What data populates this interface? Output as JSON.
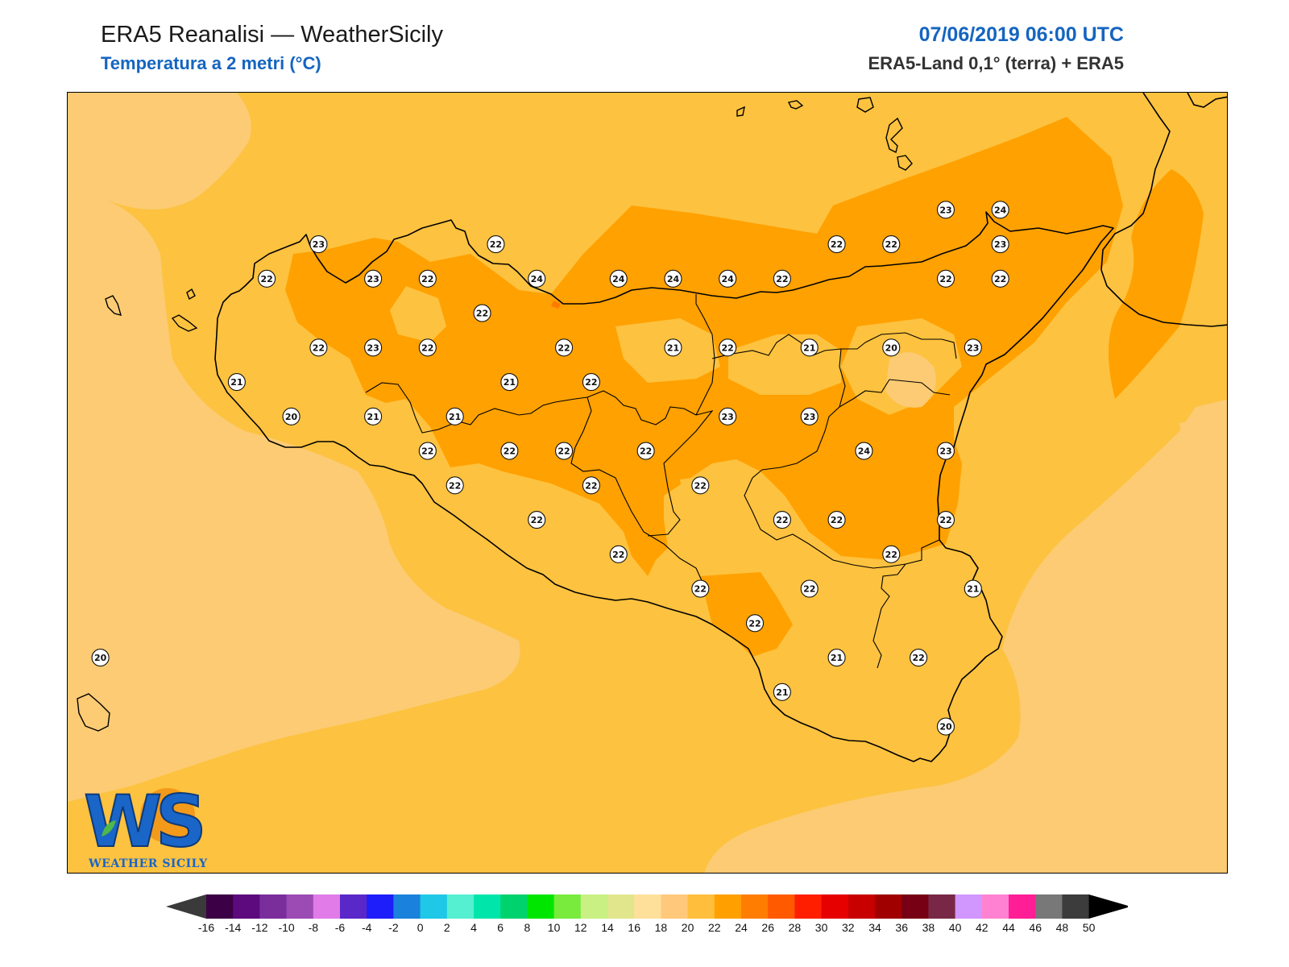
{
  "header": {
    "title": "ERA5 Reanalisi — WeatherSicily",
    "subtitle": "Temperatura a 2 metri (°C)",
    "datetime": "07/06/2019 06:00 UTC",
    "source": "ERA5-Land 0,1° (terra) + ERA5"
  },
  "logo": {
    "letters": "WS",
    "text": "WEATHER SICILY"
  },
  "colors": {
    "sea_light": "#fccb73",
    "base": "#fdc23f",
    "warm": "#ffa100",
    "hot": "#ff7b00",
    "coast": "#000000"
  },
  "stations": [
    {
      "lon": 12.72,
      "lat": 38.02,
      "value": "23"
    },
    {
      "lon": 13.37,
      "lat": 38.02,
      "value": "22"
    },
    {
      "lon": 12.53,
      "lat": 37.92,
      "value": "22"
    },
    {
      "lon": 12.92,
      "lat": 37.92,
      "value": "23"
    },
    {
      "lon": 13.12,
      "lat": 37.92,
      "value": "22"
    },
    {
      "lon": 13.32,
      "lat": 37.82,
      "value": "22"
    },
    {
      "lon": 13.52,
      "lat": 37.92,
      "value": "24"
    },
    {
      "lon": 13.82,
      "lat": 37.92,
      "value": "24"
    },
    {
      "lon": 14.02,
      "lat": 37.92,
      "value": "24"
    },
    {
      "lon": 14.22,
      "lat": 37.92,
      "value": "24"
    },
    {
      "lon": 14.42,
      "lat": 37.92,
      "value": "22"
    },
    {
      "lon": 14.62,
      "lat": 38.02,
      "value": "22"
    },
    {
      "lon": 14.82,
      "lat": 38.02,
      "value": "22"
    },
    {
      "lon": 15.02,
      "lat": 38.12,
      "value": "23"
    },
    {
      "lon": 15.22,
      "lat": 38.12,
      "value": "24"
    },
    {
      "lon": 15.22,
      "lat": 38.02,
      "value": "23"
    },
    {
      "lon": 15.02,
      "lat": 37.92,
      "value": "22"
    },
    {
      "lon": 15.22,
      "lat": 37.92,
      "value": "22"
    },
    {
      "lon": 12.72,
      "lat": 37.72,
      "value": "22"
    },
    {
      "lon": 12.92,
      "lat": 37.72,
      "value": "23"
    },
    {
      "lon": 13.12,
      "lat": 37.72,
      "value": "22"
    },
    {
      "lon": 13.62,
      "lat": 37.72,
      "value": "22"
    },
    {
      "lon": 14.02,
      "lat": 37.72,
      "value": "21"
    },
    {
      "lon": 14.22,
      "lat": 37.72,
      "value": "22"
    },
    {
      "lon": 14.52,
      "lat": 37.72,
      "value": "21"
    },
    {
      "lon": 14.82,
      "lat": 37.72,
      "value": "20"
    },
    {
      "lon": 15.12,
      "lat": 37.72,
      "value": "23"
    },
    {
      "lon": 12.42,
      "lat": 37.62,
      "value": "21"
    },
    {
      "lon": 13.42,
      "lat": 37.62,
      "value": "21"
    },
    {
      "lon": 13.72,
      "lat": 37.62,
      "value": "22"
    },
    {
      "lon": 12.62,
      "lat": 37.52,
      "value": "20"
    },
    {
      "lon": 12.92,
      "lat": 37.52,
      "value": "21"
    },
    {
      "lon": 13.22,
      "lat": 37.52,
      "value": "21"
    },
    {
      "lon": 14.22,
      "lat": 37.52,
      "value": "23"
    },
    {
      "lon": 14.52,
      "lat": 37.52,
      "value": "23"
    },
    {
      "lon": 13.12,
      "lat": 37.42,
      "value": "22"
    },
    {
      "lon": 13.42,
      "lat": 37.42,
      "value": "22"
    },
    {
      "lon": 13.62,
      "lat": 37.42,
      "value": "22"
    },
    {
      "lon": 13.92,
      "lat": 37.42,
      "value": "22"
    },
    {
      "lon": 14.72,
      "lat": 37.42,
      "value": "24"
    },
    {
      "lon": 15.02,
      "lat": 37.42,
      "value": "23"
    },
    {
      "lon": 13.22,
      "lat": 37.32,
      "value": "22"
    },
    {
      "lon": 13.72,
      "lat": 37.32,
      "value": "22"
    },
    {
      "lon": 14.12,
      "lat": 37.32,
      "value": "22"
    },
    {
      "lon": 13.52,
      "lat": 37.22,
      "value": "22"
    },
    {
      "lon": 14.42,
      "lat": 37.22,
      "value": "22"
    },
    {
      "lon": 14.62,
      "lat": 37.22,
      "value": "22"
    },
    {
      "lon": 15.02,
      "lat": 37.22,
      "value": "22"
    },
    {
      "lon": 13.82,
      "lat": 37.12,
      "value": "22"
    },
    {
      "lon": 14.82,
      "lat": 37.12,
      "value": "22"
    },
    {
      "lon": 14.12,
      "lat": 37.02,
      "value": "22"
    },
    {
      "lon": 14.52,
      "lat": 37.02,
      "value": "22"
    },
    {
      "lon": 15.12,
      "lat": 37.02,
      "value": "21"
    },
    {
      "lon": 14.32,
      "lat": 36.92,
      "value": "22"
    },
    {
      "lon": 14.62,
      "lat": 36.82,
      "value": "21"
    },
    {
      "lon": 14.92,
      "lat": 36.82,
      "value": "22"
    },
    {
      "lon": 14.42,
      "lat": 36.72,
      "value": "21"
    },
    {
      "lon": 15.02,
      "lat": 36.62,
      "value": "20"
    },
    {
      "lon": 11.92,
      "lat": 36.82,
      "value": "20"
    }
  ],
  "colorbar": {
    "labels": [
      "-16",
      "-14",
      "-12",
      "-10",
      "-8",
      "-6",
      "-4",
      "-2",
      "0",
      "2",
      "4",
      "6",
      "8",
      "10",
      "12",
      "14",
      "16",
      "18",
      "20",
      "22",
      "24",
      "26",
      "28",
      "30",
      "32",
      "34",
      "36",
      "38",
      "40",
      "42",
      "44",
      "46",
      "48",
      "50"
    ],
    "colors": [
      "#3c0046",
      "#5c0a7e",
      "#7a2e9c",
      "#9c4ab4",
      "#e07be8",
      "#5a28c8",
      "#1e1efa",
      "#1a82dc",
      "#1ec8e6",
      "#55f0d2",
      "#00e6aa",
      "#00d26e",
      "#00e600",
      "#78eb3c",
      "#c8f082",
      "#e1e68c",
      "#ffe09b",
      "#ffc87a",
      "#ffbe3c",
      "#ffa000",
      "#ff7d00",
      "#ff5a00",
      "#ff1e00",
      "#e60000",
      "#c80000",
      "#a00000",
      "#780014",
      "#782846",
      "#d296ff",
      "#ff82d2",
      "#ff1e96",
      "#787878",
      "#3c3c3c"
    ]
  }
}
